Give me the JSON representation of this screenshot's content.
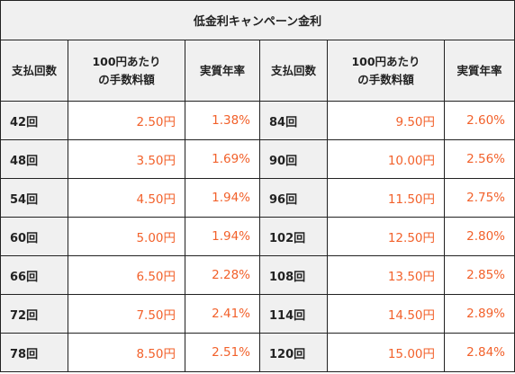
{
  "title": "低金利キャンペーン金利",
  "headers": {
    "count": "支払回数",
    "fee": "100円あたりの手数料額",
    "rate": "実質年率"
  },
  "colors": {
    "header_bg": "#f0f0f0",
    "border": "#222222",
    "value_text": "#f2612b"
  },
  "rows": [
    {
      "left": {
        "count": "42回",
        "fee": "2.50円",
        "rate": "1.38%"
      },
      "right": {
        "count": "84回",
        "fee": "9.50円",
        "rate": "2.60%"
      }
    },
    {
      "left": {
        "count": "48回",
        "fee": "3.50円",
        "rate": "1.69%"
      },
      "right": {
        "count": "90回",
        "fee": "10.00円",
        "rate": "2.56%"
      }
    },
    {
      "left": {
        "count": "54回",
        "fee": "4.50円",
        "rate": "1.94%"
      },
      "right": {
        "count": "96回",
        "fee": "11.50円",
        "rate": "2.75%"
      }
    },
    {
      "left": {
        "count": "60回",
        "fee": "5.00円",
        "rate": "1.94%"
      },
      "right": {
        "count": "102回",
        "fee": "12.50円",
        "rate": "2.80%"
      }
    },
    {
      "left": {
        "count": "66回",
        "fee": "6.50円",
        "rate": "2.28%"
      },
      "right": {
        "count": "108回",
        "fee": "13.50円",
        "rate": "2.85%"
      }
    },
    {
      "left": {
        "count": "72回",
        "fee": "7.50円",
        "rate": "2.41%"
      },
      "right": {
        "count": "114回",
        "fee": "14.50円",
        "rate": "2.89%"
      }
    },
    {
      "left": {
        "count": "78回",
        "fee": "8.50円",
        "rate": "2.51%"
      },
      "right": {
        "count": "120回",
        "fee": "15.00円",
        "rate": "2.84%"
      }
    }
  ]
}
